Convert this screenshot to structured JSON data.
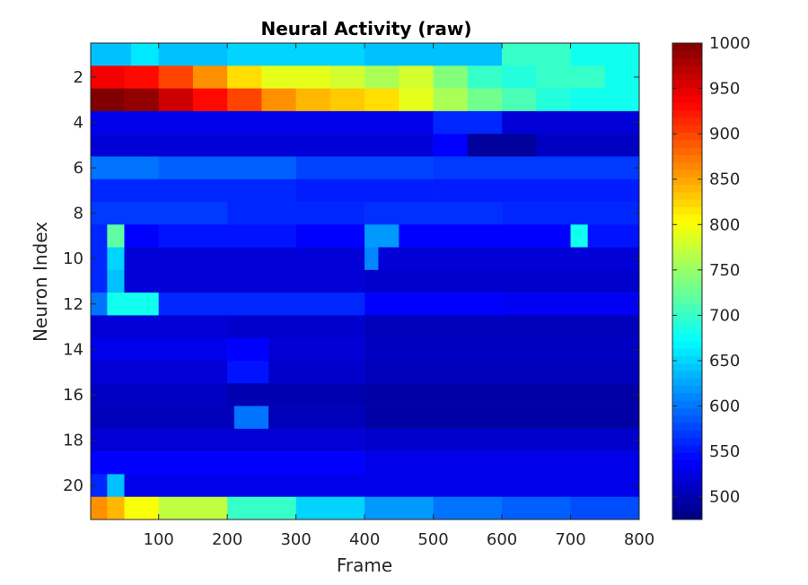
{
  "chart_data": {
    "type": "heatmap",
    "title": "Neural Activity (raw)",
    "xlabel": "Frame",
    "ylabel": "Neuron Index",
    "xlim": [
      1,
      800
    ],
    "ylim": [
      0.5,
      21.5
    ],
    "x_ticks": [
      100,
      200,
      300,
      400,
      500,
      600,
      700,
      800
    ],
    "y_ticks": [
      2,
      4,
      6,
      8,
      10,
      12,
      14,
      16,
      18,
      20
    ],
    "y_direction": "reversed",
    "colormap": "jet",
    "clim": [
      475,
      1000
    ],
    "colorbar_ticks": [
      500,
      550,
      600,
      650,
      700,
      750,
      800,
      850,
      900,
      950,
      1000
    ],
    "rows": [
      {
        "neuron": 1,
        "segments": [
          [
            1,
            60,
            640
          ],
          [
            60,
            100,
            660
          ],
          [
            100,
            200,
            640
          ],
          [
            200,
            400,
            650
          ],
          [
            400,
            600,
            640
          ],
          [
            600,
            700,
            700
          ],
          [
            700,
            800,
            680
          ]
        ]
      },
      {
        "neuron": 2,
        "segments": [
          [
            1,
            50,
            940
          ],
          [
            50,
            100,
            930
          ],
          [
            100,
            150,
            900
          ],
          [
            150,
            200,
            860
          ],
          [
            200,
            250,
            820
          ],
          [
            250,
            300,
            790
          ],
          [
            300,
            350,
            790
          ],
          [
            350,
            400,
            780
          ],
          [
            400,
            450,
            760
          ],
          [
            450,
            500,
            780
          ],
          [
            500,
            550,
            740
          ],
          [
            550,
            600,
            700
          ],
          [
            600,
            650,
            690
          ],
          [
            650,
            700,
            700
          ],
          [
            700,
            750,
            700
          ],
          [
            750,
            800,
            680
          ]
        ]
      },
      {
        "neuron": 3,
        "segments": [
          [
            1,
            50,
            1000
          ],
          [
            50,
            100,
            990
          ],
          [
            100,
            150,
            960
          ],
          [
            150,
            200,
            930
          ],
          [
            200,
            250,
            900
          ],
          [
            250,
            300,
            860
          ],
          [
            300,
            350,
            840
          ],
          [
            350,
            400,
            830
          ],
          [
            400,
            450,
            820
          ],
          [
            450,
            500,
            790
          ],
          [
            500,
            550,
            760
          ],
          [
            550,
            600,
            730
          ],
          [
            600,
            650,
            710
          ],
          [
            650,
            700,
            690
          ],
          [
            700,
            750,
            680
          ],
          [
            750,
            800,
            680
          ]
        ]
      },
      {
        "neuron": 4,
        "segments": [
          [
            1,
            500,
            530
          ],
          [
            500,
            600,
            560
          ],
          [
            600,
            800,
            520
          ]
        ]
      },
      {
        "neuron": 5,
        "segments": [
          [
            1,
            500,
            520
          ],
          [
            500,
            550,
            540
          ],
          [
            550,
            650,
            490
          ],
          [
            650,
            800,
            510
          ]
        ]
      },
      {
        "neuron": 6,
        "segments": [
          [
            1,
            100,
            600
          ],
          [
            100,
            300,
            590
          ],
          [
            300,
            500,
            575
          ],
          [
            500,
            700,
            570
          ],
          [
            700,
            800,
            570
          ]
        ]
      },
      {
        "neuron": 7,
        "segments": [
          [
            1,
            300,
            560
          ],
          [
            300,
            500,
            555
          ],
          [
            500,
            800,
            555
          ]
        ]
      },
      {
        "neuron": 8,
        "segments": [
          [
            1,
            200,
            570
          ],
          [
            200,
            400,
            560
          ],
          [
            400,
            600,
            565
          ],
          [
            600,
            800,
            560
          ]
        ]
      },
      {
        "neuron": 9,
        "segments": [
          [
            1,
            25,
            560
          ],
          [
            25,
            50,
            720
          ],
          [
            50,
            100,
            540
          ],
          [
            100,
            300,
            550
          ],
          [
            300,
            400,
            540
          ],
          [
            400,
            450,
            620
          ],
          [
            450,
            700,
            540
          ],
          [
            700,
            725,
            680
          ],
          [
            725,
            800,
            550
          ]
        ]
      },
      {
        "neuron": 10,
        "segments": [
          [
            1,
            25,
            560
          ],
          [
            25,
            50,
            650
          ],
          [
            50,
            400,
            520
          ],
          [
            400,
            420,
            610
          ],
          [
            420,
            800,
            520
          ]
        ]
      },
      {
        "neuron": 11,
        "segments": [
          [
            1,
            25,
            560
          ],
          [
            25,
            50,
            640
          ],
          [
            50,
            400,
            520
          ],
          [
            400,
            800,
            515
          ]
        ]
      },
      {
        "neuron": 12,
        "segments": [
          [
            1,
            25,
            600
          ],
          [
            25,
            100,
            680
          ],
          [
            100,
            400,
            560
          ],
          [
            400,
            600,
            540
          ],
          [
            600,
            800,
            535
          ]
        ]
      },
      {
        "neuron": 13,
        "segments": [
          [
            1,
            200,
            520
          ],
          [
            200,
            400,
            515
          ],
          [
            400,
            800,
            505
          ]
        ]
      },
      {
        "neuron": 14,
        "segments": [
          [
            1,
            200,
            530
          ],
          [
            200,
            260,
            540
          ],
          [
            260,
            400,
            520
          ],
          [
            400,
            800,
            510
          ]
        ]
      },
      {
        "neuron": 15,
        "segments": [
          [
            1,
            200,
            520
          ],
          [
            200,
            260,
            550
          ],
          [
            260,
            400,
            515
          ],
          [
            400,
            800,
            505
          ]
        ]
      },
      {
        "neuron": 16,
        "segments": [
          [
            1,
            200,
            510
          ],
          [
            200,
            400,
            500
          ],
          [
            400,
            800,
            495
          ]
        ]
      },
      {
        "neuron": 17,
        "segments": [
          [
            1,
            210,
            505
          ],
          [
            210,
            260,
            600
          ],
          [
            260,
            400,
            505
          ],
          [
            400,
            800,
            495
          ]
        ]
      },
      {
        "neuron": 18,
        "segments": [
          [
            1,
            400,
            520
          ],
          [
            400,
            800,
            515
          ]
        ]
      },
      {
        "neuron": 19,
        "segments": [
          [
            1,
            400,
            540
          ],
          [
            400,
            800,
            530
          ]
        ]
      },
      {
        "neuron": 20,
        "segments": [
          [
            1,
            25,
            560
          ],
          [
            25,
            50,
            640
          ],
          [
            50,
            400,
            530
          ],
          [
            400,
            800,
            530
          ]
        ]
      },
      {
        "neuron": 21,
        "segments": [
          [
            1,
            25,
            860
          ],
          [
            25,
            50,
            840
          ],
          [
            50,
            100,
            800
          ],
          [
            100,
            200,
            770
          ],
          [
            200,
            300,
            700
          ],
          [
            300,
            400,
            650
          ],
          [
            400,
            500,
            620
          ],
          [
            500,
            600,
            600
          ],
          [
            600,
            700,
            590
          ],
          [
            700,
            800,
            580
          ]
        ]
      }
    ]
  }
}
